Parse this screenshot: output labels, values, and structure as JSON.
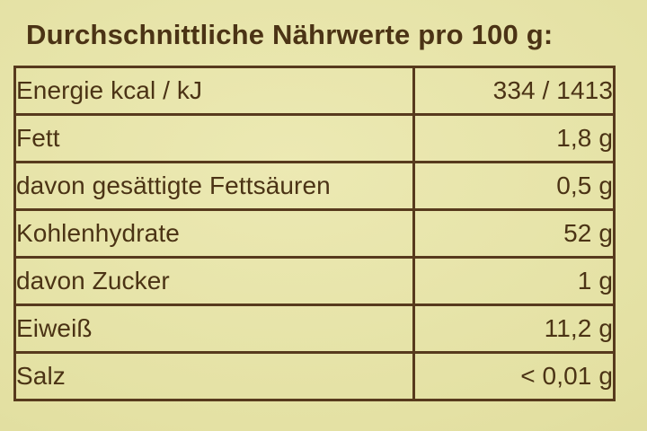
{
  "title": "Durchschnittliche Nährwerte pro 100 g:",
  "table": {
    "rows": [
      {
        "label": "Energie kcal / kJ",
        "value": "334 / 1413"
      },
      {
        "label": "Fett",
        "value": "1,8 g"
      },
      {
        "label": "davon gesättigte Fettsäuren",
        "value": "0,5 g"
      },
      {
        "label": "Kohlenhydrate",
        "value": "52 g"
      },
      {
        "label": "davon Zucker",
        "value": "1 g"
      },
      {
        "label": "Eiweiß",
        "value": "11,2 g"
      },
      {
        "label": "Salz",
        "value": "< 0,01 g"
      }
    ]
  },
  "colors": {
    "background": "#e3e0a2",
    "ink": "#4b3315",
    "border": "#573a1d"
  }
}
